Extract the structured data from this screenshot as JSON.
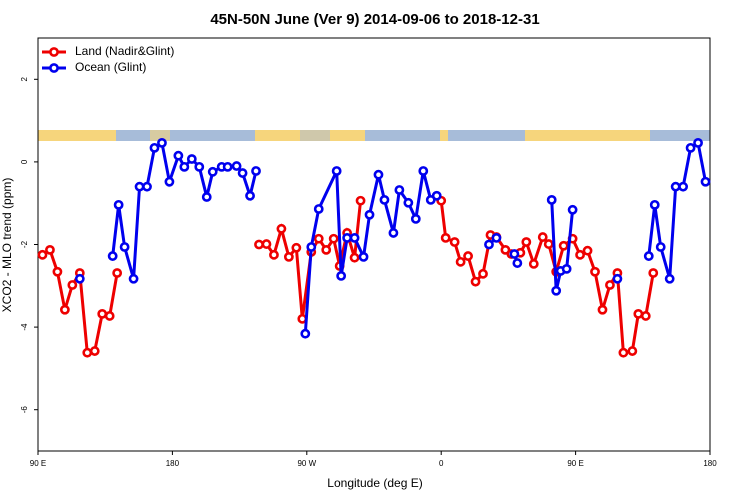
{
  "chart_data": {
    "type": "line",
    "title": "45N-50N June (Ver 9)   2014-09-06 to 2018-12-31",
    "xlabel": "Longitude (deg E)",
    "ylabel": "XCO2 - MLO trend (ppm)",
    "xlim": [
      90,
      540
    ],
    "xticks": [
      {
        "value": 90,
        "label": "90 E"
      },
      180,
      {
        "value": 270,
        "label": "90 W"
      },
      {
        "value": 360,
        "label": "0"
      },
      {
        "value": 450,
        "label": "90 E"
      },
      {
        "value": 540,
        "label": "180"
      }
    ],
    "ylim": [
      -7,
      3
    ],
    "yticks": [
      -6,
      -4,
      -2,
      0,
      2
    ],
    "legend": "top-left",
    "series": [
      {
        "name": "Land (Nadir&Glint)",
        "color": "#ee0000",
        "x": [
          93,
          98,
          103,
          108,
          113,
          118,
          123,
          128,
          133,
          138,
          143,
          null,
          238,
          243,
          248,
          253,
          258,
          263,
          267,
          273,
          278,
          283,
          288,
          292,
          297,
          302,
          306,
          null,
          360,
          363,
          369,
          373,
          378,
          383,
          388,
          393,
          397,
          403,
          407,
          413,
          417,
          422,
          428,
          432,
          437,
          442,
          448,
          453,
          458,
          463,
          468,
          473,
          478,
          482,
          488,
          492,
          497,
          502
        ],
        "values": [
          -2.25,
          -2.13,
          -2.66,
          -3.58,
          -2.98,
          -2.69,
          -4.62,
          -4.58,
          -3.68,
          -3.73,
          -2.69,
          null,
          -2.0,
          -1.99,
          -2.25,
          -1.62,
          -2.3,
          -2.08,
          -3.8,
          -2.18,
          -1.86,
          -2.13,
          -1.86,
          -2.52,
          -1.72,
          -2.32,
          -0.94,
          null,
          -0.94,
          -1.84,
          -1.94,
          -2.42,
          -2.28,
          -2.9,
          -2.71,
          -1.77,
          -1.82,
          -2.13,
          -2.23,
          -2.2,
          -1.94,
          -2.47,
          -1.82,
          -1.99,
          -2.66,
          -2.03,
          -1.86,
          -2.25,
          -2.15,
          -2.66,
          -3.58,
          -2.98,
          -2.69,
          -4.62,
          -4.58,
          -3.68,
          -3.73,
          -2.69
        ]
      },
      {
        "name": "Ocean (Glint)",
        "color": "#0000ee",
        "x": [
          118,
          null,
          140,
          144,
          148,
          154,
          158,
          163,
          168,
          173,
          178,
          184,
          188,
          193,
          198,
          203,
          207,
          213,
          217,
          223,
          227,
          232,
          236,
          null,
          269,
          273,
          278,
          290,
          293,
          297,
          302,
          308,
          312,
          318,
          322,
          328,
          332,
          338,
          343,
          348,
          353,
          357,
          null,
          392,
          397,
          null,
          409,
          411,
          null,
          434,
          437,
          440,
          444,
          448,
          null,
          478,
          null,
          499,
          503,
          507,
          513,
          517,
          522,
          527,
          532,
          537
        ],
        "values": [
          -2.83,
          null,
          -2.28,
          -1.04,
          -2.06,
          -2.83,
          -0.6,
          -0.6,
          0.34,
          0.46,
          -0.48,
          0.15,
          -0.12,
          0.07,
          -0.12,
          -0.85,
          -0.24,
          -0.12,
          -0.12,
          -0.1,
          -0.27,
          -0.82,
          -0.22,
          null,
          -4.16,
          -2.06,
          -1.14,
          -0.22,
          -2.76,
          -1.84,
          -1.84,
          -2.3,
          -1.28,
          -0.31,
          -0.92,
          -1.72,
          -0.68,
          -0.99,
          -1.38,
          -0.22,
          -0.92,
          -0.82,
          null,
          -2.0,
          -1.84,
          null,
          -2.23,
          -2.45,
          null,
          -0.92,
          -3.12,
          -2.64,
          -2.59,
          -1.16,
          null,
          -2.83,
          null,
          -2.28,
          -1.04,
          -2.06,
          -2.83,
          -0.6,
          -0.6,
          0.34,
          0.46,
          -0.48
        ]
      }
    ]
  }
}
